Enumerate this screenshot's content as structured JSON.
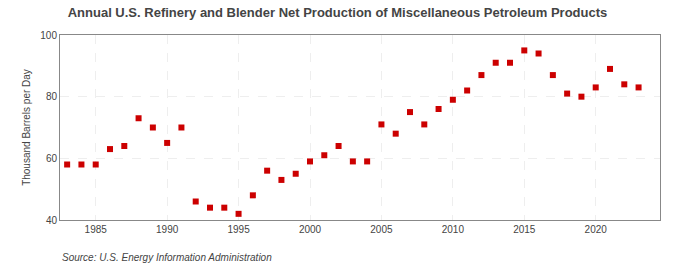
{
  "chart_data": {
    "type": "scatter",
    "title": "Annual U.S. Refinery and Blender Net Production of Miscellaneous Petroleum Products",
    "ylabel": "Thousand Barrels per Day",
    "annotations": [
      "Source: U.S. Energy Information Administration"
    ],
    "x": [
      1983,
      1984,
      1985,
      1986,
      1987,
      1988,
      1989,
      1990,
      1991,
      1992,
      1993,
      1994,
      1995,
      1996,
      1997,
      1998,
      1999,
      2000,
      2001,
      2002,
      2003,
      2004,
      2005,
      2006,
      2007,
      2008,
      2009,
      2010,
      2011,
      2012,
      2013,
      2014,
      2015,
      2016,
      2017,
      2018,
      2019,
      2020,
      2021,
      2022,
      2023
    ],
    "values": [
      58,
      58,
      58,
      63,
      64,
      73,
      70,
      65,
      70,
      46,
      44,
      44,
      42,
      48,
      56,
      53,
      55,
      59,
      61,
      64,
      59,
      59,
      71,
      68,
      75,
      71,
      76,
      79,
      82,
      87,
      91,
      91,
      95,
      94,
      87,
      81,
      80,
      83,
      89,
      84,
      83
    ],
    "color": "#cc0000",
    "marker": "square",
    "xlim": [
      1982.5,
      2024.5
    ],
    "xticks": [
      1985,
      1990,
      1995,
      2000,
      2005,
      2010,
      2015,
      2020
    ],
    "ylim": [
      40,
      100
    ],
    "yticks": [
      40,
      60,
      80,
      100
    ],
    "grid": true
  }
}
